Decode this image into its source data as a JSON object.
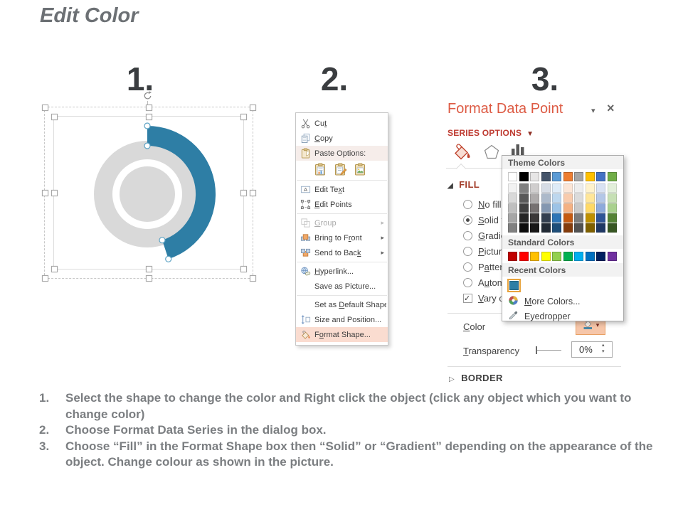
{
  "title": "Edit Color",
  "step_numbers": {
    "one": "1.",
    "two": "2.",
    "three": "3."
  },
  "colors": {
    "accent_blue": "#2E7EA5",
    "shape_gray": "#D9D9D9",
    "panel_title": "#DD5B44",
    "series_options_red": "#BE3B31",
    "fill_header_red": "#A23B28",
    "menu_highlight": "#FADCD0",
    "recent_swatch_outline": "#E8A33D"
  },
  "context_menu": {
    "items": [
      {
        "type": "item",
        "label": "Cut",
        "u": 2,
        "icon": "scissors-icon"
      },
      {
        "type": "item",
        "label": "Copy",
        "u": 0,
        "icon": "copy-icon"
      },
      {
        "type": "item",
        "label": "Paste Options:",
        "u": -1,
        "icon": "clipboard-icon",
        "shaded": true
      },
      {
        "type": "paste-icons",
        "icons": [
          {
            "name": "paste-use-destination-theme-icon",
            "icon": "paste-theme-icon"
          },
          {
            "name": "paste-keep-source-formatting-icon",
            "icon": "paste-source-icon"
          },
          {
            "name": "paste-as-picture-icon",
            "icon": "paste-picture-icon"
          }
        ]
      },
      {
        "type": "separator"
      },
      {
        "type": "item",
        "label": "Edit Text",
        "u": 7,
        "icon": "edit-text-icon"
      },
      {
        "type": "item",
        "label": "Edit Points",
        "u": 0,
        "icon": "edit-points-icon"
      },
      {
        "type": "separator"
      },
      {
        "type": "item",
        "label": "Group",
        "u": 0,
        "icon": "group-icon",
        "disabled": true,
        "submenu": true
      },
      {
        "type": "item",
        "label": "Bring to Front",
        "u": 10,
        "icon": "bring-front-icon",
        "submenu": true
      },
      {
        "type": "item",
        "label": "Send to Back",
        "u": 11,
        "icon": "send-back-icon",
        "submenu": true
      },
      {
        "type": "separator"
      },
      {
        "type": "item",
        "label": "Hyperlink...",
        "u": 0,
        "icon": "hyperlink-icon"
      },
      {
        "type": "item",
        "label": "Save as Picture...",
        "u": -1,
        "icon": null
      },
      {
        "type": "separator"
      },
      {
        "type": "item",
        "label": "Set as Default Shape",
        "u": 7,
        "icon": null
      },
      {
        "type": "item",
        "label": "Size and Position...",
        "u": -1,
        "icon": "size-position-icon"
      },
      {
        "type": "item",
        "label": "Format Shape...",
        "u": 1,
        "icon": "format-shape-icon",
        "highlighted": true
      }
    ]
  },
  "format_panel": {
    "title": "Format Data Point",
    "collapse_icon": "▾",
    "close_icon": "×",
    "section_label": "SERIES OPTIONS",
    "tabs": [
      {
        "name": "fill-line-tab",
        "icon": "paint-bucket-icon"
      },
      {
        "name": "effects-tab",
        "icon": "pentagon-icon"
      },
      {
        "name": "series-options-tab",
        "icon": "chart-bars-icon"
      }
    ],
    "fill": {
      "label": "FILL",
      "options": [
        {
          "label": "No fill",
          "u": 0,
          "type": "radio",
          "checked": false
        },
        {
          "label": "Solid fill",
          "u": 0,
          "type": "radio",
          "checked": true
        },
        {
          "label": "Gradient fill",
          "u": 0,
          "type": "radio",
          "checked": false
        },
        {
          "label": "Picture or texture fill",
          "u": 0,
          "type": "radio",
          "checked": false
        },
        {
          "label": "Pattern fill",
          "u": 1,
          "type": "radio",
          "checked": false
        },
        {
          "label": "Automatic",
          "u": 1,
          "type": "radio",
          "checked": false
        },
        {
          "label": "Vary colors by point",
          "u": 0,
          "type": "checkbox",
          "checked": true
        }
      ],
      "color_label": "Color",
      "color_u": 0,
      "transparency_label": "Transparency",
      "transparency_u": 0,
      "transparency_value": "0%"
    },
    "border": {
      "label": "BORDER"
    }
  },
  "color_popup": {
    "theme_header": "Theme Colors",
    "theme_colors": [
      "#FFFFFF",
      "#000000",
      "#E7E6E6",
      "#44546A",
      "#5B9BD5",
      "#ED7D31",
      "#A5A5A5",
      "#FFC000",
      "#4472C4",
      "#70AD47"
    ],
    "theme_variants": [
      [
        "#F2F2F2",
        "#D9D9D9",
        "#BFBFBF",
        "#A6A6A6",
        "#808080"
      ],
      [
        "#808080",
        "#595959",
        "#404040",
        "#262626",
        "#0D0D0D"
      ],
      [
        "#D0CECE",
        "#AEABAB",
        "#767171",
        "#3B3838",
        "#181717"
      ],
      [
        "#D6DCE5",
        "#ACB9CA",
        "#8497B0",
        "#333F50",
        "#222A35"
      ],
      [
        "#DEEBF7",
        "#BDD7EE",
        "#9DC3E6",
        "#2E75B6",
        "#1F4E79"
      ],
      [
        "#FBE5D6",
        "#F8CBAD",
        "#F4B183",
        "#C55A11",
        "#843C0C"
      ],
      [
        "#EDEDED",
        "#DBDBDB",
        "#C9C9C9",
        "#7B7B7B",
        "#525252"
      ],
      [
        "#FFF2CC",
        "#FFE699",
        "#FFD966",
        "#BF9000",
        "#7F6000"
      ],
      [
        "#D9E2F3",
        "#B4C7E7",
        "#8EAADB",
        "#2F5496",
        "#1F3864"
      ],
      [
        "#E2EFDA",
        "#C6E0B4",
        "#A9D18E",
        "#548235",
        "#375623"
      ]
    ],
    "standard_header": "Standard Colors",
    "standard_colors": [
      "#C00000",
      "#FF0000",
      "#FFC000",
      "#FFFF00",
      "#92D050",
      "#00B050",
      "#00B0F0",
      "#0070C0",
      "#002060",
      "#7030A0"
    ],
    "recent_header": "Recent Colors",
    "recent_colors": [
      "#2E7EA5"
    ],
    "more_colors": {
      "label": "More Colors...",
      "u": 0,
      "icon": "color-wheel-icon"
    },
    "eyedropper": {
      "label": "Eyedropper",
      "u": -1,
      "icon": "eyedropper-icon"
    }
  },
  "instructions": [
    {
      "num": "1.",
      "text": "Select the shape to change the color and Right click the object (click any object which you want to change color)"
    },
    {
      "num": "2.",
      "text": "Choose Format Data Series in the dialog box."
    },
    {
      "num": "3.",
      "text": "Choose “Fill” in the Format Shape box then “Solid” or “Gradient” depending on the appearance of the object. Change colour as shown in the picture."
    }
  ]
}
